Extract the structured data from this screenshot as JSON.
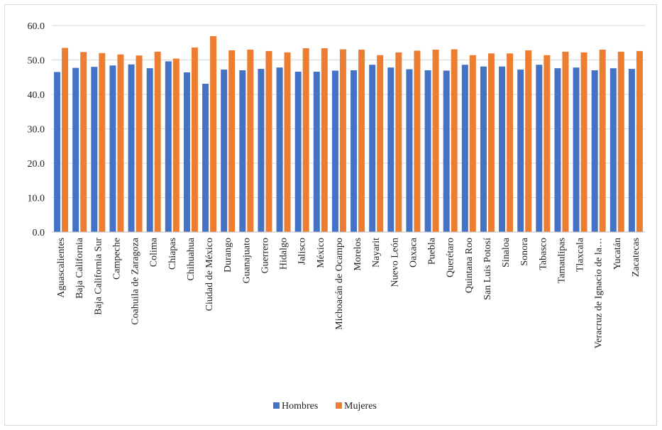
{
  "chart_data": {
    "type": "bar",
    "title": "",
    "xlabel": "",
    "ylabel": "",
    "ylim": [
      0,
      60
    ],
    "yticks": [
      "0.0",
      "10.0",
      "20.0",
      "30.0",
      "40.0",
      "50.0",
      "60.0"
    ],
    "grid": true,
    "legend_position": "bottom",
    "categories": [
      "Aguascalientes",
      "Baja California",
      "Baja California Sur",
      "Campeche",
      "Coahuila de Zaragoza",
      "Colima",
      "Chiapas",
      "Chihuahua",
      "Ciudad de México",
      "Durango",
      "Guanajuato",
      "Guerrero",
      "Hidalgo",
      "Jalisco",
      "México",
      "Michoacán de Ocampo",
      "Morelos",
      "Nayarit",
      "Nuevo León",
      "Oaxaca",
      "Puebla",
      "Querétaro",
      "Quintana Roo",
      "San Luis Potosí",
      "Sinaloa",
      "Sonora",
      "Tabasco",
      "Tamaulipas",
      "Tlaxcala",
      "Veracruz de Ignacio de la…",
      "Yucatán",
      "Zacatecas"
    ],
    "series": [
      {
        "name": "Hombres",
        "color": "#4472C4",
        "values": [
          46.5,
          47.7,
          48.0,
          48.4,
          48.7,
          47.6,
          49.6,
          46.4,
          43.1,
          47.2,
          47.0,
          47.4,
          47.8,
          46.6,
          46.6,
          46.9,
          47.0,
          48.6,
          47.8,
          47.3,
          47.0,
          46.9,
          48.6,
          48.1,
          48.1,
          47.2,
          48.6,
          47.6,
          47.8,
          47.0,
          47.6,
          47.4
        ]
      },
      {
        "name": "Mujeres",
        "color": "#ED7D31",
        "values": [
          53.5,
          52.3,
          52.0,
          51.6,
          51.3,
          52.4,
          50.4,
          53.6,
          56.9,
          52.8,
          53.0,
          52.6,
          52.2,
          53.4,
          53.4,
          53.1,
          53.0,
          51.4,
          52.2,
          52.7,
          53.0,
          53.1,
          51.4,
          51.9,
          51.9,
          52.8,
          51.4,
          52.4,
          52.2,
          53.0,
          52.4,
          52.6
        ]
      }
    ]
  }
}
